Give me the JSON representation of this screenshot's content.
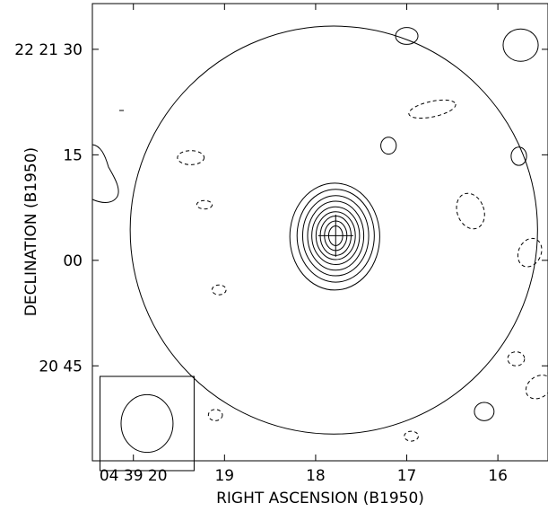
{
  "chart_data": {
    "type": "contour",
    "xlabel": "RIGHT ASCENSION (B1950)",
    "ylabel": "DECLINATION (B1950)",
    "x_ticks": [
      {
        "value": 20,
        "label": "04 39 20"
      },
      {
        "value": 19,
        "label": "19"
      },
      {
        "value": 18,
        "label": "18"
      },
      {
        "value": 17,
        "label": "17"
      },
      {
        "value": 16,
        "label": "16"
      }
    ],
    "y_ticks": [
      {
        "value": 30,
        "label": "22 21 30"
      },
      {
        "value": 15,
        "label": "15"
      },
      {
        "value": 0,
        "label": "00"
      },
      {
        "value": -15,
        "label": "20 45"
      }
    ],
    "xlim": [
      20.45,
      15.45
    ],
    "ylim": [
      -28.5,
      36.5
    ],
    "primary_beam": {
      "center_ra": 17.8,
      "center_dec": 4.3,
      "radius_arcsec": 29
    },
    "source": {
      "ra": 17.78,
      "dec": 3.5,
      "peak_marker": "cross",
      "contour_radii_arcsec": [
        [
          6.4,
          7.6
        ],
        [
          5.5,
          6.6
        ],
        [
          4.7,
          5.7
        ],
        [
          4.0,
          4.9
        ],
        [
          3.4,
          4.1
        ],
        [
          2.8,
          3.4
        ],
        [
          2.2,
          2.8
        ],
        [
          1.6,
          2.1
        ],
        [
          1.0,
          1.4
        ]
      ]
    },
    "positive_contours": [
      {
        "ra": 17.0,
        "dec": 31.9,
        "rx": 1.6,
        "ry": 1.2
      },
      {
        "ra": 15.75,
        "dec": 30.6,
        "rx": 2.5,
        "ry": 2.3
      },
      {
        "ra": 17.2,
        "dec": 16.3,
        "rx": 1.1,
        "ry": 1.2
      },
      {
        "ra": 15.77,
        "dec": 14.8,
        "rx": 1.1,
        "ry": 1.3
      },
      {
        "ra": 16.15,
        "dec": -21.5,
        "rx": 1.4,
        "ry": 1.3
      }
    ],
    "negative_contours": [
      {
        "ra": 16.72,
        "dec": 21.5,
        "rx": 3.4,
        "ry": 1.1,
        "rotate": -12
      },
      {
        "ra": 19.37,
        "dec": 14.6,
        "rx": 1.9,
        "ry": 1.0
      },
      {
        "ra": 19.22,
        "dec": 7.9,
        "rx": 1.1,
        "ry": 0.6
      },
      {
        "ra": 16.3,
        "dec": 7.0,
        "rx": 1.9,
        "ry": 2.6,
        "rotate": -20
      },
      {
        "ra": 15.65,
        "dec": 1.1,
        "rx": 1.6,
        "ry": 2.1,
        "rotate": 25
      },
      {
        "ra": 19.06,
        "dec": -4.2,
        "rx": 1.0,
        "ry": 0.7
      },
      {
        "ra": 15.8,
        "dec": -14.0,
        "rx": 1.2,
        "ry": 1.0
      },
      {
        "ra": 15.55,
        "dec": -18.0,
        "rx": 2.0,
        "ry": 1.5,
        "rotate": -35
      },
      {
        "ra": 19.1,
        "dec": -22.0,
        "rx": 1.0,
        "ry": 0.8
      },
      {
        "ra": 16.95,
        "dec": -25.0,
        "rx": 1.0,
        "ry": 0.7
      }
    ],
    "beam_ellipse": {
      "ra": 19.85,
      "dec": -23.2,
      "rx": 3.7,
      "ry": 4.1
    }
  }
}
